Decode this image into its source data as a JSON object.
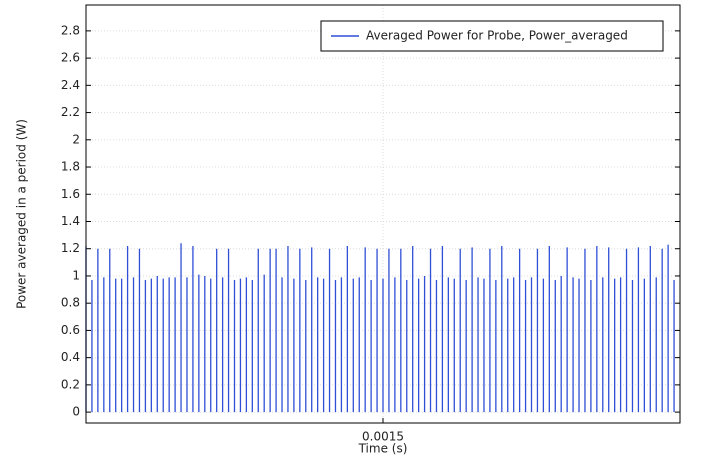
{
  "chart_data": {
    "type": "stem",
    "xlabel": "Time (s)",
    "ylabel": "Power averaged in a period (W)",
    "xlim": [
      0.001,
      0.002
    ],
    "xticks": [
      0.0015
    ],
    "ylim": [
      -0.08,
      2.99
    ],
    "yticks": [
      0,
      0.2,
      0.4,
      0.6,
      0.8,
      1,
      1.2,
      1.4,
      1.6,
      1.8,
      2,
      2.2,
      2.4,
      2.6,
      2.8
    ],
    "grid": true,
    "legend": "upper right",
    "x": [
      0.001,
      0.00101,
      0.00102,
      0.00103,
      0.00104,
      0.00105,
      0.00106,
      0.00107,
      0.00108,
      0.00109,
      0.0011,
      0.00111,
      0.00112,
      0.00113,
      0.00114,
      0.00115,
      0.00116,
      0.00117,
      0.00118,
      0.00119,
      0.0012,
      0.00121,
      0.00122,
      0.00123,
      0.00124,
      0.00125,
      0.00126,
      0.00127,
      0.00128,
      0.00129,
      0.0013,
      0.00131,
      0.00132,
      0.00133,
      0.00134,
      0.00135,
      0.00136,
      0.00137,
      0.00138,
      0.00139,
      0.0014,
      0.00141,
      0.00142,
      0.00143,
      0.00144,
      0.00145,
      0.00146,
      0.00147,
      0.00148,
      0.00149,
      0.0015,
      0.00151,
      0.00152,
      0.00153,
      0.00154,
      0.00155,
      0.00156,
      0.00157,
      0.00158,
      0.00159,
      0.0016,
      0.00161,
      0.00162,
      0.00163,
      0.00164,
      0.00165,
      0.00166,
      0.00167,
      0.00168,
      0.00169,
      0.0017,
      0.00171,
      0.00172,
      0.00173,
      0.00174,
      0.00175,
      0.00176,
      0.00177,
      0.00178,
      0.00179,
      0.0018,
      0.00181,
      0.00182,
      0.00183,
      0.00184,
      0.00185,
      0.00186,
      0.00187,
      0.00188,
      0.00189,
      0.0019,
      0.00191,
      0.00192,
      0.00193,
      0.00194,
      0.00195,
      0.00196,
      0.00197,
      0.00198,
      0.00199
    ],
    "series": [
      {
        "name": "Averaged Power for Probe, Power_averaged",
        "color": "#2f4fd6",
        "values": [
          1.22,
          0.97,
          1.2,
          0.99,
          1.2,
          0.98,
          0.98,
          1.22,
          0.99,
          1.2,
          0.97,
          0.98,
          1.0,
          0.98,
          0.99,
          0.99,
          1.24,
          0.99,
          1.22,
          1.01,
          1.0,
          0.98,
          1.2,
          0.99,
          1.2,
          0.97,
          0.98,
          0.99,
          0.97,
          1.2,
          1.01,
          1.2,
          1.2,
          0.99,
          1.22,
          0.98,
          1.2,
          0.97,
          1.21,
          0.99,
          0.98,
          1.2,
          0.97,
          0.99,
          1.22,
          0.98,
          0.99,
          1.21,
          0.97,
          1.2,
          0.98,
          1.2,
          0.99,
          1.2,
          0.97,
          1.22,
          0.98,
          1.0,
          1.2,
          0.97,
          1.22,
          0.99,
          0.98,
          1.2,
          0.97,
          1.21,
          0.99,
          0.98,
          1.2,
          0.97,
          1.22,
          0.98,
          0.99,
          1.2,
          0.97,
          0.99,
          1.2,
          0.98,
          1.22,
          0.97,
          1.0,
          1.21,
          0.99,
          0.98,
          1.2,
          0.97,
          1.22,
          0.99,
          1.21,
          0.98,
          0.99,
          1.2,
          0.97,
          1.21,
          0.98,
          1.22,
          0.99,
          1.2,
          1.23,
          0.97
        ]
      }
    ]
  }
}
